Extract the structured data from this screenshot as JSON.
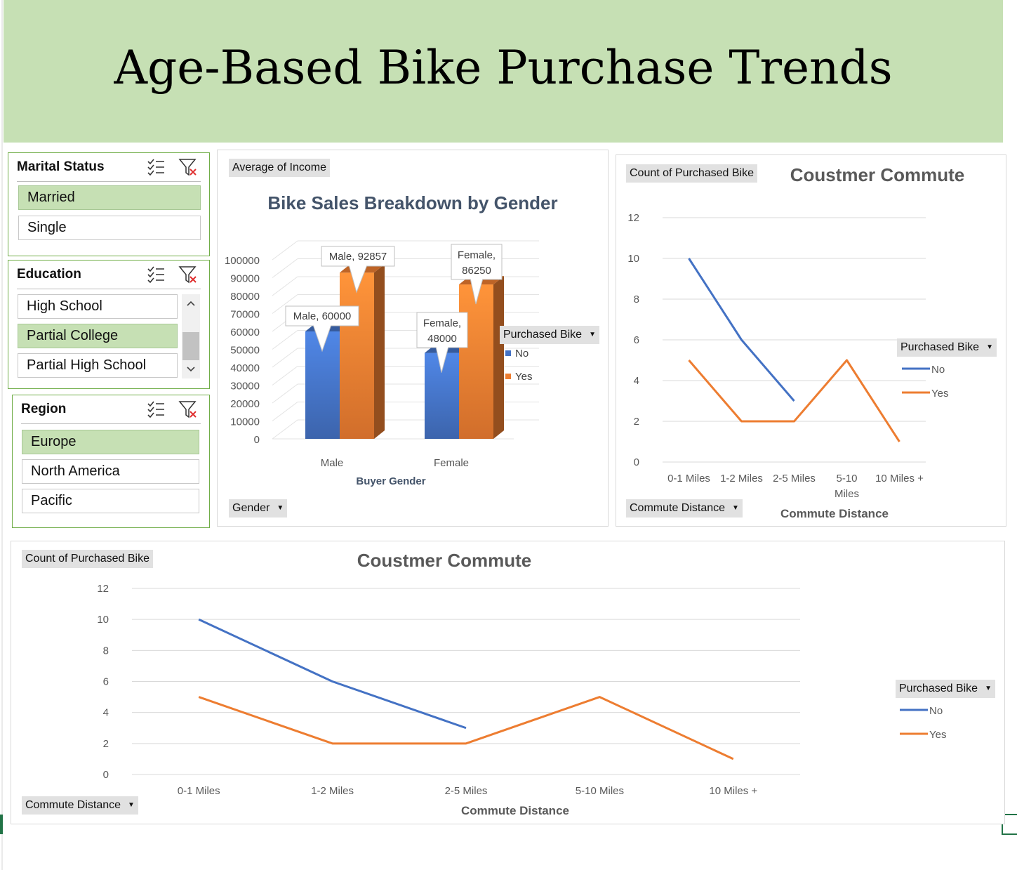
{
  "banner": {
    "title": "Age-Based Bike Purchase Trends"
  },
  "slicers": {
    "marital": {
      "title": "Marital Status",
      "items": [
        {
          "label": "Married",
          "selected": true
        },
        {
          "label": "Single",
          "selected": false
        }
      ]
    },
    "education": {
      "title": "Education",
      "items": [
        {
          "label": "High School",
          "selected": false
        },
        {
          "label": "Partial College",
          "selected": true
        },
        {
          "label": "Partial High School",
          "selected": false
        }
      ]
    },
    "region": {
      "title": "Region",
      "items": [
        {
          "label": "Europe",
          "selected": true
        },
        {
          "label": "North America",
          "selected": false
        },
        {
          "label": "Pacific",
          "selected": false
        }
      ]
    }
  },
  "gender_chart": {
    "value_button": "Average of Income",
    "axis_button": "Gender",
    "legend_button": "Purchased Bike",
    "legend_items": [
      "No",
      "Yes"
    ]
  },
  "commute_small": {
    "value_button": "Count of Purchased Bike",
    "axis_button": "Commute Distance",
    "legend_button": "Purchased Bike",
    "legend_items": [
      "No",
      "Yes"
    ]
  },
  "commute_large": {
    "value_button": "Count of Purchased Bike",
    "axis_button": "Commute Distance",
    "legend_button": "Purchased Bike",
    "legend_items": [
      "No",
      "Yes"
    ]
  },
  "colors": {
    "no": "#4472c4",
    "yes": "#ed7d31",
    "banner": "#c6e0b4",
    "slicer_selected": "#c6e0b4",
    "slicer_border": "#70ad47"
  },
  "chart_data": [
    {
      "type": "bar",
      "title": "Bike Sales Breakdown by Gender",
      "xlabel": "Buyer Gender",
      "ylabel": "",
      "categories": [
        "Male",
        "Female"
      ],
      "series": [
        {
          "name": "No",
          "values": [
            60000,
            48000
          ]
        },
        {
          "name": "Yes",
          "values": [
            92857,
            86250
          ]
        }
      ],
      "data_labels": [
        [
          "Male, 60000",
          "Female, 48000"
        ],
        [
          "Male, 92857",
          "Female, 86250"
        ]
      ],
      "yticks": [
        "0",
        "10000",
        "20000",
        "30000",
        "40000",
        "50000",
        "60000",
        "70000",
        "80000",
        "90000",
        "100000"
      ],
      "ylim": [
        0,
        100000
      ],
      "style": "3d-clustered-column",
      "grid": true,
      "legend": "right"
    },
    {
      "type": "line",
      "title": "Coustmer Commute",
      "xlabel": "Commute Distance",
      "ylabel": "",
      "categories": [
        "0-1 Miles",
        "1-2 Miles",
        "2-5 Miles",
        "5-10 Miles",
        "10 Miles +"
      ],
      "series": [
        {
          "name": "No",
          "values": [
            10,
            6,
            3,
            null,
            null
          ]
        },
        {
          "name": "Yes",
          "values": [
            5,
            2,
            2,
            5,
            1
          ]
        }
      ],
      "yticks": [
        "0",
        "2",
        "4",
        "6",
        "8",
        "10",
        "12"
      ],
      "ylim": [
        0,
        12
      ],
      "grid": true,
      "legend": "right"
    },
    {
      "type": "line",
      "title": "Coustmer Commute",
      "xlabel": "Commute Distance",
      "ylabel": "",
      "categories": [
        "0-1 Miles",
        "1-2 Miles",
        "2-5 Miles",
        "5-10 Miles",
        "10 Miles +"
      ],
      "series": [
        {
          "name": "No",
          "values": [
            10,
            6,
            3,
            null,
            null
          ]
        },
        {
          "name": "Yes",
          "values": [
            5,
            2,
            2,
            5,
            1
          ]
        }
      ],
      "yticks": [
        "0",
        "2",
        "4",
        "6",
        "8",
        "10",
        "12"
      ],
      "ylim": [
        0,
        12
      ],
      "grid": true,
      "legend": "right"
    }
  ]
}
